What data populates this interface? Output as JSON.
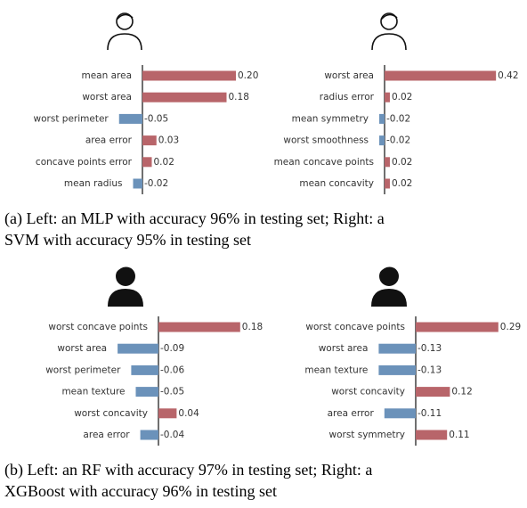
{
  "chart_data": [
    {
      "type": "bar",
      "orientation": "horizontal",
      "categories": [
        "mean area",
        "worst area",
        "worst perimeter",
        "area error",
        "concave points error",
        "mean radius"
      ],
      "values": [
        0.2,
        0.18,
        -0.05,
        0.03,
        0.02,
        -0.02
      ],
      "value_labels": [
        "0.20",
        "0.18",
        "-0.05",
        "0.03",
        "0.02",
        "-0.02"
      ],
      "positive_color": "#b8656a",
      "negative_color": "#6b92ba"
    },
    {
      "type": "bar",
      "orientation": "horizontal",
      "categories": [
        "worst area",
        "radius error",
        "mean symmetry",
        "worst smoothness",
        "mean concave points",
        "mean concavity"
      ],
      "values": [
        0.42,
        0.02,
        -0.02,
        -0.02,
        0.02,
        0.02
      ],
      "value_labels": [
        "0.42",
        "0.02",
        "-0.02",
        "-0.02",
        "0.02",
        "0.02"
      ],
      "positive_color": "#b8656a",
      "negative_color": "#6b92ba"
    },
    {
      "type": "bar",
      "orientation": "horizontal",
      "categories": [
        "worst concave points",
        "worst area",
        "worst perimeter",
        "mean texture",
        "worst concavity",
        "area error"
      ],
      "values": [
        0.18,
        -0.09,
        -0.06,
        -0.05,
        0.04,
        -0.04
      ],
      "value_labels": [
        "0.18",
        "-0.09",
        "-0.06",
        "-0.05",
        "0.04",
        "-0.04"
      ],
      "positive_color": "#b8656a",
      "negative_color": "#6b92ba"
    },
    {
      "type": "bar",
      "orientation": "horizontal",
      "categories": [
        "worst concave points",
        "worst area",
        "mean texture",
        "worst concavity",
        "area error",
        "worst symmetry"
      ],
      "values": [
        0.29,
        -0.13,
        -0.13,
        0.12,
        -0.11,
        0.11
      ],
      "value_labels": [
        "0.29",
        "-0.13",
        "-0.13",
        "0.12",
        "-0.11",
        "0.11"
      ],
      "positive_color": "#b8656a",
      "negative_color": "#6b92ba"
    }
  ],
  "captions": [
    [
      "(a) Left: an MLP with accuracy 96% in testing set; Right: a",
      "SVM with accuracy 95% in testing set"
    ],
    [
      "(b) Left: an RF with accuracy 97% in testing set; Right: a",
      "XGBoost with accuracy 96% in testing set"
    ]
  ]
}
